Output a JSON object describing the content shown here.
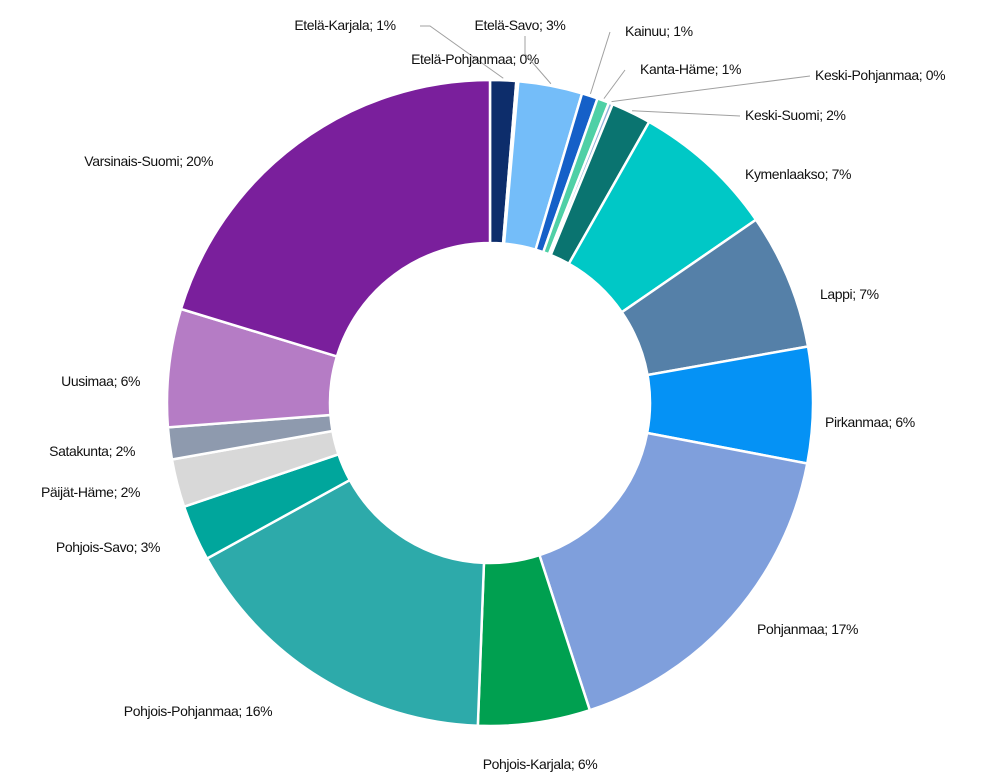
{
  "chart_data": {
    "type": "donut",
    "label_separator": "; ",
    "categories": [
      "Etelä-Karjala",
      "Etelä-Pohjanmaa",
      "Etelä-Savo",
      "Kainuu",
      "Kanta-Häme",
      "Keski-Pohjanmaa",
      "Keski-Suomi",
      "Kymenlaakso",
      "Lappi",
      "Pirkanmaa",
      "Pohjanmaa",
      "Pohjois-Karjala",
      "Pohjois-Pohjanmaa",
      "Pohjois-Savo",
      "Päijät-Häme",
      "Satakunta",
      "Uusimaa",
      "Varsinais-Suomi"
    ],
    "values": [
      1.3,
      0.1,
      3.2,
      0.8,
      0.6,
      0.2,
      2.0,
      7.2,
      6.8,
      5.8,
      17.0,
      5.6,
      16.4,
      2.8,
      2.4,
      1.6,
      5.9,
      20.3
    ],
    "value_labels": [
      "1%",
      "0%",
      "3%",
      "1%",
      "1%",
      "0%",
      "2%",
      "7%",
      "7%",
      "6%",
      "17%",
      "6%",
      "16%",
      "3%",
      "2%",
      "2%",
      "6%",
      "20%"
    ],
    "colors": [
      "#0d2d6b",
      "#1f4e9a",
      "#74bdf9",
      "#1560c8",
      "#4fd0a6",
      "#8fb0d8",
      "#0a7470",
      "#00c8c6",
      "#5580a8",
      "#0592f5",
      "#7f9fdc",
      "#00a050",
      "#2daaaa",
      "#00a69c",
      "#d8d8d8",
      "#8e9aae",
      "#b57cc5",
      "#7a1f9c"
    ]
  }
}
